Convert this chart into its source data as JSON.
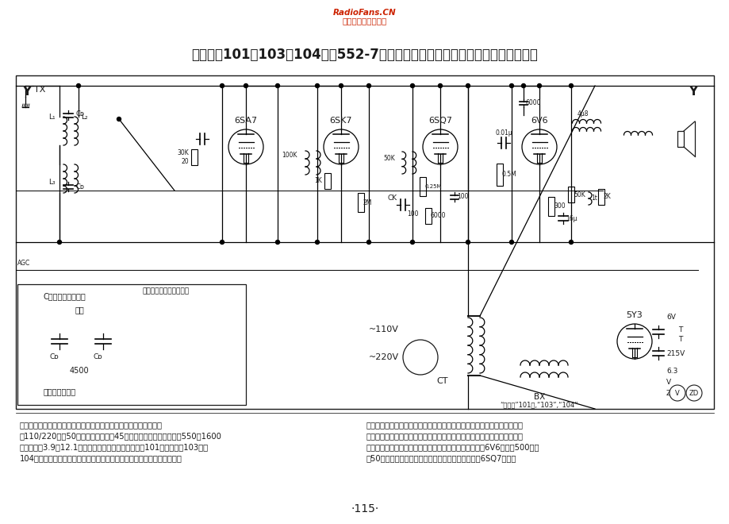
{
  "title": "新时代牌101、103、104型（552-7）交流五管二波段（原上海公利电器厂产品）",
  "watermark_line1": "RadioFans.CN",
  "watermark_line2": "收音机爱好者资料库",
  "page_number": "·115·",
  "background_color": "#ffffff",
  "text_color": "#1a1a1a",
  "watermark_color": "#cc2200",
  "tube_labels": [
    "6SA7",
    "6SK7",
    "6SQ7",
    "6V6",
    "5Y3"
  ],
  "tube_x": [
    310,
    430,
    555,
    680,
    815
  ],
  "tube_y": [
    195,
    195,
    195,
    195,
    430
  ],
  "desc_col1": [
    "【说明】本机备有拾音器插口，可放唱片。一般性能，使用电源：交",
    "流110/220伏，50周；电力消耗，约45瓦；收听频率范围，中波：550～1600",
    "千周，短波3.9～12.1兆周；装备及使用说明，外壳，101型塑胶制，103型、",
    "104型用木质；控制旋钮，左：电源开关及音量控制，中：电台选择，右："
  ],
  "desc_col2": [
    "波段开关；拾音装置，机后有拾音器插孔，拾音器插头塞入后，即可放送唱",
    "片，同时自动切断收音电路；线路结构及特点，输出变压器：初级有抽头，",
    "将一部份线圈接入馈放电路，以平衡交流声；负回授：由6V6屏路内500千欧",
    "与50千欧电阻组成的分压器上取得负回授电压，输至6SQ7屏路。"
  ],
  "tone_box_label": "C尼音数音均有补偿",
  "tone_adjust": "调整",
  "switch_note": "此，波段开关在中波位置",
  "dual_cap_label": "双连可变电容器",
  "voltage1": "~110V",
  "voltage2": "~220V",
  "ct_label": "CT",
  "bx_label": "BX",
  "model_label": "“新时代”101型,“103”,“104”",
  "v_label": "V",
  "zd_label": "ZD"
}
